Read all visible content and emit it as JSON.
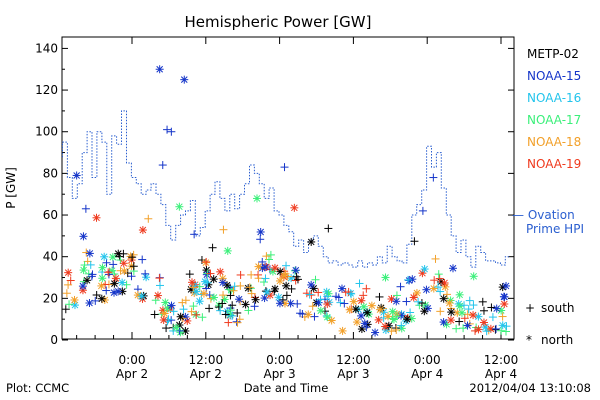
{
  "chart_data": {
    "type": "scatter",
    "title": "Hemispheric Power [GW]",
    "ylabel": "P [GW]",
    "xlabel": "Date and Time",
    "ylim": [
      0,
      145
    ],
    "yticks": [
      0,
      20,
      40,
      60,
      80,
      100,
      120,
      140
    ],
    "xlim_hours": [
      0,
      72
    ],
    "xticks": [
      {
        "t": 12,
        "time": "0:00",
        "date": "Apr 2"
      },
      {
        "t": 24,
        "time": "12:00",
        "date": "Apr 2"
      },
      {
        "t": 36,
        "time": "0:00",
        "date": "Apr 3"
      },
      {
        "t": 48,
        "time": "12:00",
        "date": "Apr 3"
      },
      {
        "t": 60,
        "time": "0:00",
        "date": "Apr 4"
      },
      {
        "t": 72,
        "time": "12:00",
        "date": "Apr 4"
      }
    ],
    "grid": false,
    "legend": {
      "position": "right"
    },
    "series": [
      {
        "name": "METP-02",
        "color": "#000000"
      },
      {
        "name": "NOAA-15",
        "color": "#1535c9"
      },
      {
        "name": "NOAA-16",
        "color": "#22c4ec"
      },
      {
        "name": "NOAA-17",
        "color": "#3bf07a"
      },
      {
        "name": "NOAA-18",
        "color": "#f2a02a"
      },
      {
        "name": "NOAA-19",
        "color": "#ef3a1e"
      }
    ],
    "hemisphere_markers": [
      {
        "symbol": "+",
        "label": "south"
      },
      {
        "symbol": "*",
        "label": "north"
      }
    ],
    "ovation": {
      "label_line1": "— Ovation",
      "label_line2": "Prime HPI",
      "color": "#2b5fd0",
      "steps": [
        [
          0,
          88
        ],
        [
          0.7,
          95
        ],
        [
          1.5,
          78
        ],
        [
          2.3,
          68
        ],
        [
          3.1,
          75
        ],
        [
          3.9,
          90
        ],
        [
          4.7,
          100
        ],
        [
          5.5,
          78
        ],
        [
          6.3,
          100
        ],
        [
          7.1,
          95
        ],
        [
          7.9,
          70
        ],
        [
          8.7,
          98
        ],
        [
          9.5,
          94
        ],
        [
          10.3,
          110
        ],
        [
          11.1,
          85
        ],
        [
          11.9,
          78
        ],
        [
          12.7,
          75
        ],
        [
          13.5,
          70
        ],
        [
          14.3,
          72
        ],
        [
          15.1,
          75
        ],
        [
          15.9,
          70
        ],
        [
          16.7,
          65
        ],
        [
          17.5,
          55
        ],
        [
          18.3,
          48
        ],
        [
          19.1,
          55
        ],
        [
          19.9,
          60
        ],
        [
          20.7,
          62
        ],
        [
          21.5,
          67
        ],
        [
          22.3,
          50
        ],
        [
          23.1,
          54
        ],
        [
          23.9,
          62
        ],
        [
          24.7,
          70
        ],
        [
          25.5,
          76
        ],
        [
          26.3,
          68
        ],
        [
          27.1,
          62
        ],
        [
          27.9,
          70
        ],
        [
          28.7,
          63
        ],
        [
          29.5,
          70
        ],
        [
          30.3,
          75
        ],
        [
          31.1,
          84
        ],
        [
          31.9,
          80
        ],
        [
          32.7,
          75
        ],
        [
          33.5,
          68
        ],
        [
          34.3,
          73
        ],
        [
          35.1,
          62
        ],
        [
          35.9,
          60
        ],
        [
          36.7,
          55
        ],
        [
          37.5,
          52
        ],
        [
          38.3,
          45
        ],
        [
          39.1,
          48
        ],
        [
          39.9,
          42
        ],
        [
          40.7,
          48
        ],
        [
          41.5,
          50
        ],
        [
          42.3,
          45
        ],
        [
          43.1,
          40
        ],
        [
          43.9,
          37
        ],
        [
          44.7,
          38
        ],
        [
          45.5,
          36
        ],
        [
          46.3,
          37
        ],
        [
          47.1,
          36
        ],
        [
          47.9,
          35
        ],
        [
          48.7,
          38
        ],
        [
          49.5,
          35
        ],
        [
          50.3,
          37
        ],
        [
          51.1,
          36
        ],
        [
          51.9,
          40
        ],
        [
          52.7,
          37
        ],
        [
          53.5,
          45
        ],
        [
          54.3,
          40
        ],
        [
          55.1,
          38
        ],
        [
          55.9,
          37
        ],
        [
          56.7,
          46
        ],
        [
          57.5,
          60
        ],
        [
          58.3,
          65
        ],
        [
          59.1,
          72
        ],
        [
          59.9,
          93
        ],
        [
          60.7,
          83
        ],
        [
          61.5,
          90
        ],
        [
          62.3,
          73
        ],
        [
          63.1,
          60
        ],
        [
          63.9,
          50
        ],
        [
          64.7,
          42
        ],
        [
          65.5,
          48
        ],
        [
          66.3,
          40
        ],
        [
          67.1,
          35
        ],
        [
          67.9,
          45
        ],
        [
          68.7,
          42
        ],
        [
          69.5,
          38
        ],
        [
          70.3,
          38
        ],
        [
          71.1,
          37
        ],
        [
          71.9,
          36
        ],
        [
          72.7,
          40
        ]
      ]
    }
  },
  "footer": {
    "left": "Plot: CCMC",
    "center": "Date and Time",
    "right": "2012/04/04 13:10:08"
  }
}
